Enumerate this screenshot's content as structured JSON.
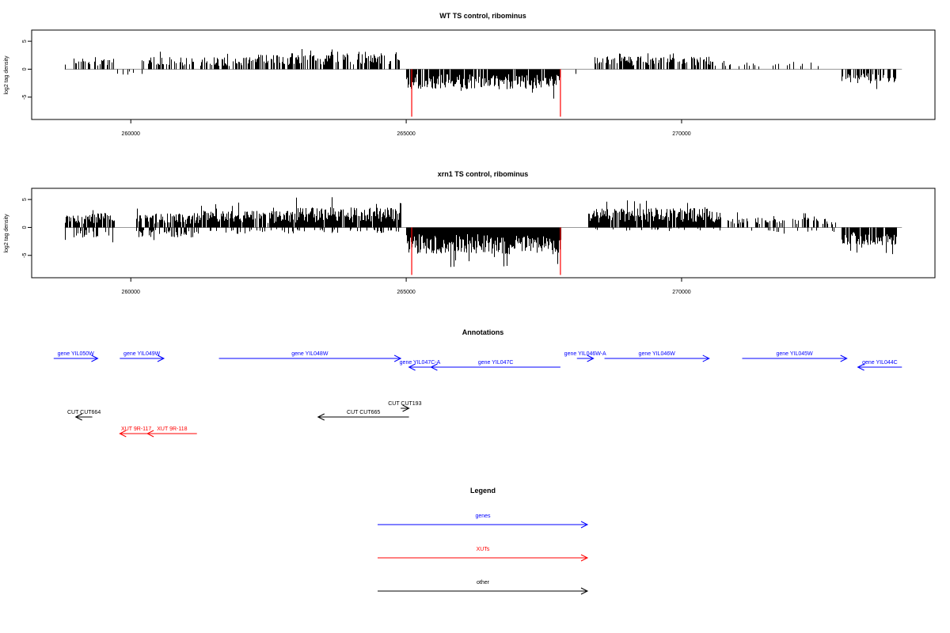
{
  "chart_data": [
    {
      "type": "bar",
      "title": "WT TS control, ribominus",
      "ylabel": "log2 tag density",
      "xlim": [
        258200,
        274600
      ],
      "ylim": [
        -9,
        7
      ],
      "x_ticks": [
        260000,
        265000,
        270000
      ],
      "x_tick_labels": [
        "260000",
        "265000",
        "270000"
      ],
      "y_ticks": [
        -5,
        0,
        5
      ],
      "y_tick_labels": [
        "-5",
        "0",
        "5"
      ],
      "bar_color": "#000000",
      "marker_color": "#ff0000",
      "markers": [
        265100,
        267800
      ],
      "marker_depth": -8.5,
      "segments": [
        {
          "x0": 258800,
          "x1": 259700,
          "sign": 1,
          "amp": 2.0,
          "density": 0.45
        },
        {
          "x0": 259700,
          "x1": 260200,
          "sign": -1,
          "amp": 1.0,
          "density": 0.15
        },
        {
          "x0": 260200,
          "x1": 262200,
          "sign": 1,
          "amp": 2.2,
          "density": 0.45
        },
        {
          "x0": 262200,
          "x1": 263600,
          "sign": 1,
          "amp": 2.6,
          "density": 0.5
        },
        {
          "x0": 263600,
          "x1": 264900,
          "sign": 1,
          "amp": 3.2,
          "density": 0.7
        },
        {
          "x0": 265000,
          "x1": 267800,
          "sign": -1,
          "amp": 3.6,
          "density": 0.9
        },
        {
          "x0": 268000,
          "x1": 268200,
          "sign": -1,
          "amp": 1.2,
          "density": 0.1
        },
        {
          "x0": 268400,
          "x1": 270600,
          "sign": 1,
          "amp": 2.3,
          "density": 0.55
        },
        {
          "x0": 270600,
          "x1": 271500,
          "sign": 1,
          "amp": 1.2,
          "density": 0.12
        },
        {
          "x0": 271500,
          "x1": 272600,
          "sign": 1,
          "amp": 1.3,
          "density": 0.12
        },
        {
          "x0": 272900,
          "x1": 273900,
          "sign": -1,
          "amp": 2.6,
          "density": 0.6
        }
      ]
    },
    {
      "type": "bar",
      "title": "xrn1 TS control, ribominus",
      "ylabel": "log2 tag density",
      "xlim": [
        258200,
        274600
      ],
      "ylim": [
        -9,
        7
      ],
      "x_ticks": [
        260000,
        265000,
        270000
      ],
      "x_tick_labels": [
        "260000",
        "265000",
        "270000"
      ],
      "y_ticks": [
        -5,
        0,
        5
      ],
      "y_tick_labels": [
        "-5",
        "0",
        "5"
      ],
      "bar_color": "#000000",
      "marker_color": "#ff0000",
      "markers": [
        265100,
        267800
      ],
      "marker_depth": -8.5,
      "segments": [
        {
          "x0": 258800,
          "x1": 259700,
          "sign": 1,
          "amp": 2.6,
          "density": 0.8
        },
        {
          "x0": 258800,
          "x1": 259700,
          "sign": -1,
          "amp": 1.8,
          "density": 0.3
        },
        {
          "x0": 260100,
          "x1": 261200,
          "sign": 1,
          "amp": 2.5,
          "density": 0.85
        },
        {
          "x0": 260100,
          "x1": 261200,
          "sign": -1,
          "amp": 1.8,
          "density": 0.4
        },
        {
          "x0": 261200,
          "x1": 263000,
          "sign": 1,
          "amp": 3.0,
          "density": 0.9
        },
        {
          "x0": 261200,
          "x1": 263000,
          "sign": -1,
          "amp": 1.2,
          "density": 0.2
        },
        {
          "x0": 263000,
          "x1": 264900,
          "sign": 1,
          "amp": 3.6,
          "density": 0.95
        },
        {
          "x0": 263000,
          "x1": 264900,
          "sign": -1,
          "amp": 1.0,
          "density": 0.15
        },
        {
          "x0": 265000,
          "x1": 267800,
          "sign": -1,
          "amp": 4.8,
          "density": 1.0
        },
        {
          "x0": 268300,
          "x1": 270700,
          "sign": 1,
          "amp": 3.4,
          "density": 0.95
        },
        {
          "x0": 268300,
          "x1": 270700,
          "sign": -1,
          "amp": 0.6,
          "density": 0.1
        },
        {
          "x0": 270800,
          "x1": 272800,
          "sign": 1,
          "amp": 1.8,
          "density": 0.45
        },
        {
          "x0": 270800,
          "x1": 272800,
          "sign": -1,
          "amp": 0.8,
          "density": 0.1
        },
        {
          "x0": 272900,
          "x1": 273900,
          "sign": -1,
          "amp": 3.2,
          "density": 0.9
        }
      ]
    }
  ],
  "annotations": {
    "title": "Annotations",
    "genes_color": "#0000ff",
    "xuts_color": "#ff0000",
    "other_color": "#000000",
    "items": [
      {
        "label": "gene YIL050W",
        "kind": "gene",
        "row": 0,
        "start": 258600,
        "end": 259400,
        "dir": "right"
      },
      {
        "label": "gene YIL049W",
        "kind": "gene",
        "row": 0,
        "start": 259800,
        "end": 260600,
        "dir": "right"
      },
      {
        "label": "gene YIL048W",
        "kind": "gene",
        "row": 0,
        "start": 261600,
        "end": 264900,
        "dir": "right"
      },
      {
        "label": "gene YIL047C-A",
        "kind": "gene",
        "row": 1,
        "start": 265050,
        "end": 265450,
        "dir": "left"
      },
      {
        "label": "gene YIL047C",
        "kind": "gene",
        "row": 1,
        "start": 265450,
        "end": 267800,
        "dir": "left"
      },
      {
        "label": "gene YIL046W-A",
        "kind": "gene",
        "row": 0,
        "start": 268100,
        "end": 268400,
        "dir": "right"
      },
      {
        "label": "gene YIL046W",
        "kind": "gene",
        "row": 0,
        "start": 268600,
        "end": 270500,
        "dir": "right"
      },
      {
        "label": "gene YIL045W",
        "kind": "gene",
        "row": 0,
        "start": 271100,
        "end": 273000,
        "dir": "right"
      },
      {
        "label": "gene YIL044C",
        "kind": "gene",
        "row": 1,
        "start": 273200,
        "end": 274000,
        "dir": "left"
      },
      {
        "label": "CUT CUT193",
        "kind": "other",
        "row": 2,
        "start": 264900,
        "end": 265050,
        "dir": "right"
      },
      {
        "label": "CUT CUT664",
        "kind": "other",
        "row": 3,
        "start": 259000,
        "end": 259300,
        "dir": "left"
      },
      {
        "label": "CUT CUT665",
        "kind": "other",
        "row": 3,
        "start": 263400,
        "end": 265050,
        "dir": "left"
      },
      {
        "label": "XUT 9R-117",
        "kind": "xut",
        "row": 4,
        "start": 259800,
        "end": 260400,
        "dir": "left"
      },
      {
        "label": "XUT 9R-118",
        "kind": "xut",
        "row": 4,
        "start": 260300,
        "end": 261200,
        "dir": "left"
      }
    ]
  },
  "legend": {
    "title": "Legend",
    "items": [
      {
        "label": "genes",
        "color": "#0000ff"
      },
      {
        "label": "XUTs",
        "color": "#ff0000"
      },
      {
        "label": "other",
        "color": "#000000"
      }
    ]
  }
}
